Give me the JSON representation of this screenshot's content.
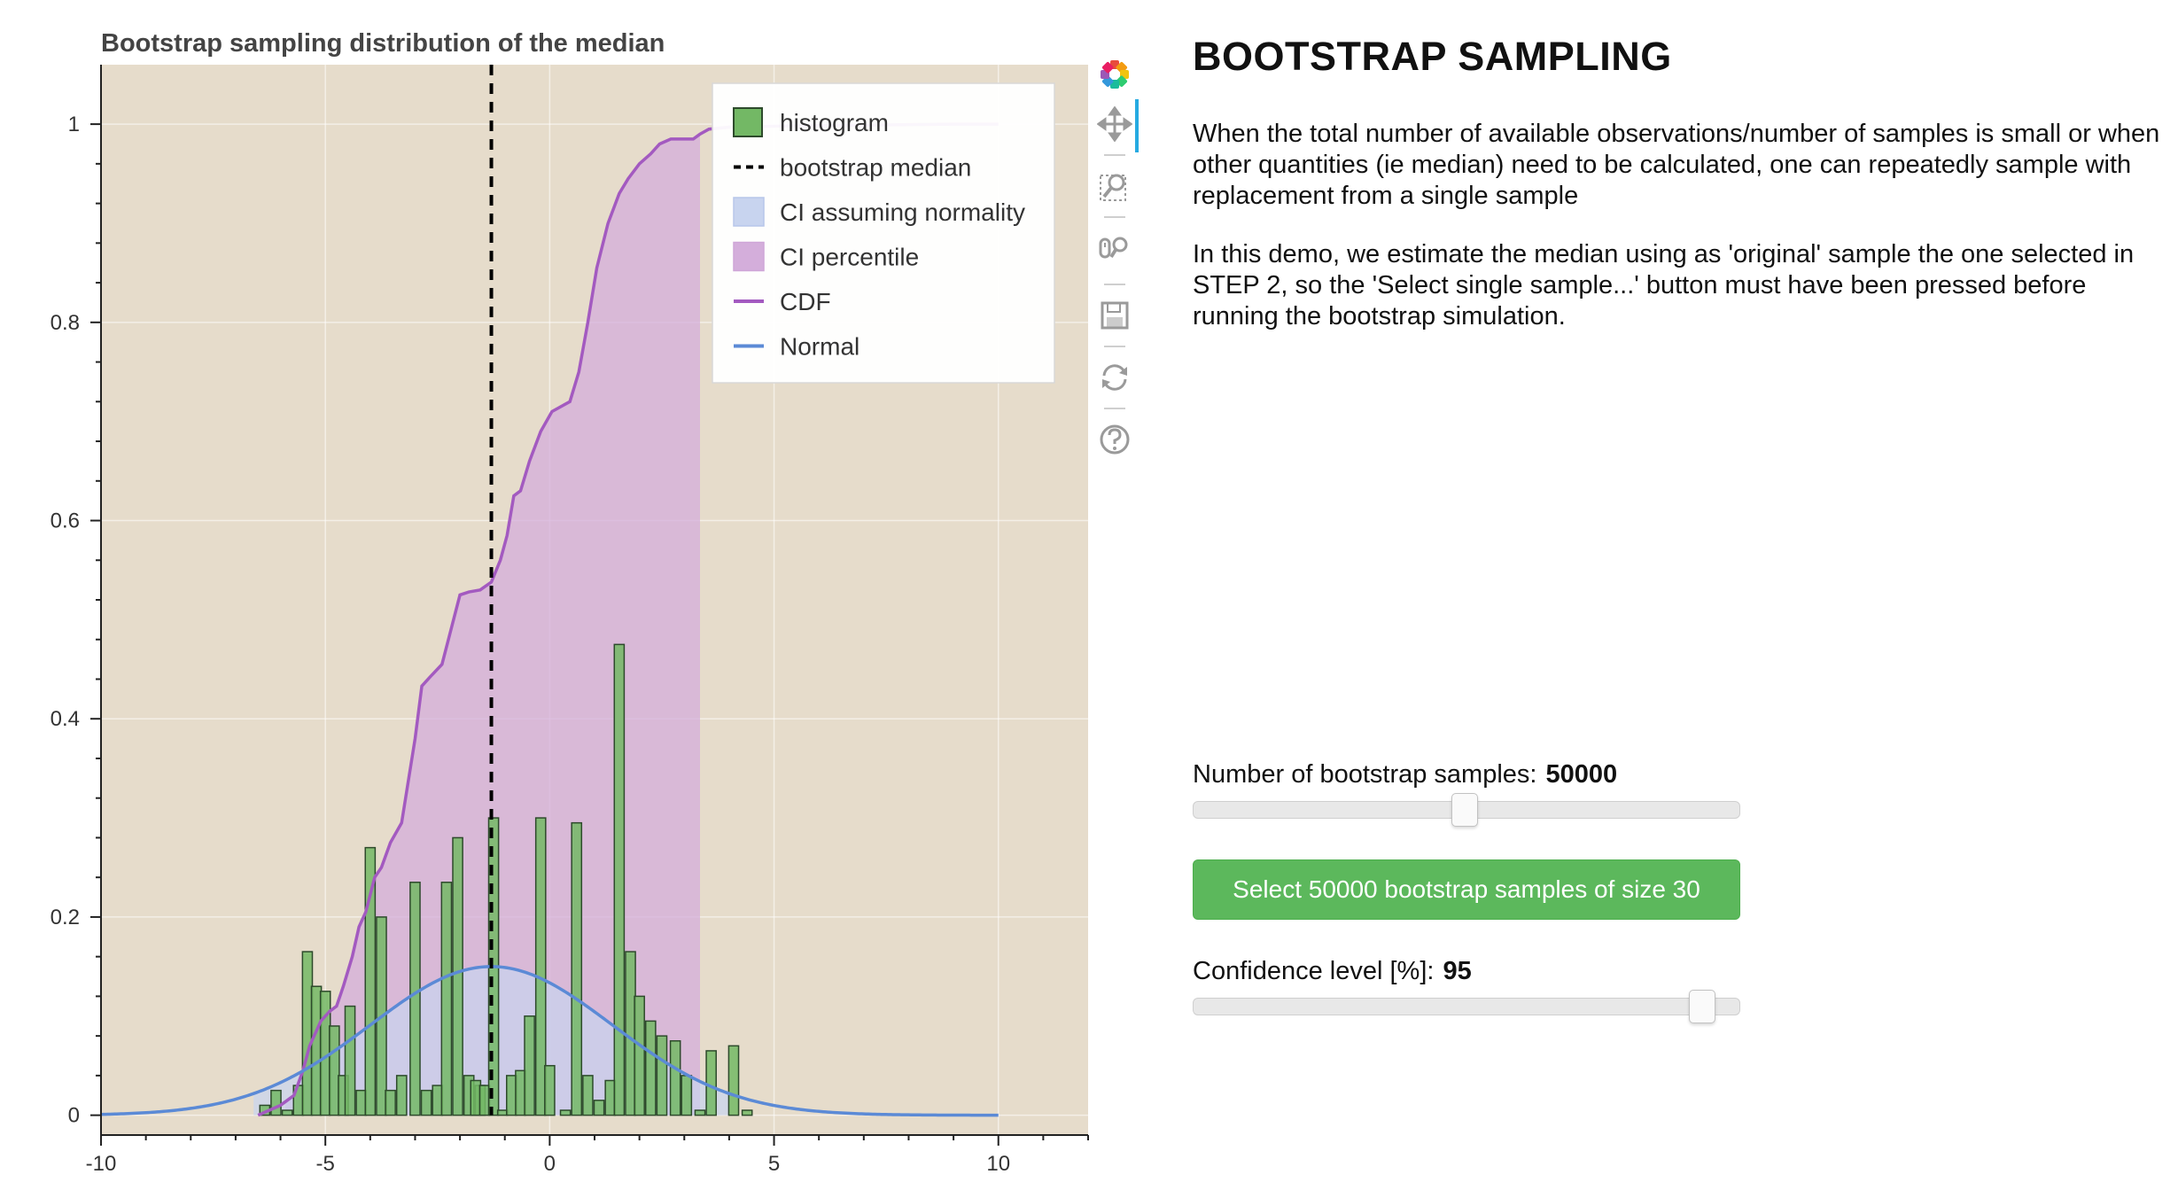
{
  "colors": {
    "plot_background": "#e6dccb",
    "histogram_fill": "#73b865",
    "histogram_edge": "#2d4a2b",
    "median_line": "#000000",
    "ci_normal_fill": "#c8d4ef",
    "ci_percentile_fill": "#d4aedb",
    "cdf_line": "#a35ac0",
    "normal_line": "#5b8ad6",
    "button_green": "#5cb85c"
  },
  "toolbar": {
    "tools": [
      {
        "name": "bokeh-logo-icon",
        "interactable": false
      },
      {
        "name": "pan-icon",
        "interactable": true,
        "active": true
      },
      {
        "name": "box-zoom-icon",
        "interactable": true
      },
      {
        "name": "wheel-zoom-icon",
        "interactable": true
      },
      {
        "name": "save-icon",
        "interactable": true
      },
      {
        "name": "reset-icon",
        "interactable": true
      },
      {
        "name": "help-icon",
        "interactable": true
      }
    ]
  },
  "panel": {
    "title": "BOOTSTRAP SAMPLING",
    "description_1": "When the total number of available observations/number of samples is small or when other quantities (ie median) need to be calculated, one can repeatedly sample with replacement from a single sample",
    "description_2": "In this demo, we estimate the median using as 'original' sample the one selected in STEP 2, so the 'Select single sample...' button must have been pressed before running the bootstrap simulation.",
    "samples_slider": {
      "label": "Number of bootstrap samples:",
      "value": "50000",
      "fraction": 0.495
    },
    "select_button_label": "Select 50000 bootstrap samples of size 30",
    "confidence_slider": {
      "label": "Confidence level [%]:",
      "value": "95",
      "fraction": 0.95
    }
  },
  "chart_data": {
    "type": "bar",
    "title": "Bootstrap sampling distribution of the median",
    "xlabel": "",
    "ylabel": "",
    "xlim": [
      -10,
      12
    ],
    "ylim": [
      -0.02,
      1.06
    ],
    "x_ticks": [
      -10,
      -5,
      0,
      5,
      10
    ],
    "x_tick_labels": [
      "-10",
      "-5",
      "0",
      "5",
      "10"
    ],
    "y_ticks": [
      0,
      0.2,
      0.4,
      0.6,
      0.8,
      1
    ],
    "y_tick_labels": [
      "0",
      "0.2",
      "0.4",
      "0.6",
      "0.8",
      "1"
    ],
    "grid": true,
    "legend_position": "top-right",
    "legend": [
      {
        "label": "histogram",
        "kind": "histogram"
      },
      {
        "label": "bootstrap median",
        "kind": "dashed"
      },
      {
        "label": "CI assuming normality",
        "kind": "ci_normal"
      },
      {
        "label": "CI percentile",
        "kind": "ci_percentile"
      },
      {
        "label": "CDF",
        "kind": "cdf"
      },
      {
        "label": "Normal",
        "kind": "normal"
      }
    ],
    "histogram": {
      "name": "histogram",
      "bin_width": 0.22,
      "bins": [
        [
          -6.35,
          0.01
        ],
        [
          -6.1,
          0.025
        ],
        [
          -5.85,
          0.005
        ],
        [
          -5.6,
          0.03
        ],
        [
          -5.4,
          0.165
        ],
        [
          -5.2,
          0.13
        ],
        [
          -5.0,
          0.125
        ],
        [
          -4.8,
          0.09
        ],
        [
          -4.6,
          0.04
        ],
        [
          -4.45,
          0.11
        ],
        [
          -4.2,
          0.025
        ],
        [
          -4.0,
          0.27
        ],
        [
          -3.75,
          0.2
        ],
        [
          -3.55,
          0.025
        ],
        [
          -3.3,
          0.04
        ],
        [
          -3.0,
          0.235
        ],
        [
          -2.75,
          0.025
        ],
        [
          -2.5,
          0.03
        ],
        [
          -2.3,
          0.235
        ],
        [
          -2.05,
          0.28
        ],
        [
          -1.8,
          0.04
        ],
        [
          -1.55,
          0.03
        ],
        [
          -1.65,
          0.035
        ],
        [
          -1.45,
          0.03
        ],
        [
          -1.25,
          0.3
        ],
        [
          -1.05,
          0.005
        ],
        [
          -0.85,
          0.04
        ],
        [
          -0.65,
          0.045
        ],
        [
          -0.45,
          0.1
        ],
        [
          -0.2,
          0.3
        ],
        [
          0.0,
          0.05
        ],
        [
          0.35,
          0.005
        ],
        [
          0.6,
          0.295
        ],
        [
          0.85,
          0.04
        ],
        [
          1.1,
          0.015
        ],
        [
          1.35,
          0.035
        ],
        [
          1.55,
          0.475
        ],
        [
          1.8,
          0.165
        ],
        [
          2.0,
          0.12
        ],
        [
          2.25,
          0.095
        ],
        [
          2.5,
          0.08
        ],
        [
          2.8,
          0.075
        ],
        [
          3.05,
          0.04
        ],
        [
          3.35,
          0.005
        ],
        [
          3.6,
          0.065
        ],
        [
          4.1,
          0.07
        ],
        [
          4.4,
          0.005
        ]
      ]
    },
    "cdf": {
      "name": "CDF",
      "x": [
        -6.5,
        -6.0,
        -5.7,
        -5.5,
        -5.35,
        -5.1,
        -4.9,
        -4.75,
        -4.6,
        -4.4,
        -4.25,
        -4.1,
        -3.9,
        -3.75,
        -3.55,
        -3.3,
        -3.0,
        -2.85,
        -2.65,
        -2.4,
        -2.2,
        -2.0,
        -1.8,
        -1.55,
        -1.3,
        -1.1,
        -0.95,
        -0.8,
        -0.65,
        -0.45,
        -0.2,
        0.05,
        0.25,
        0.45,
        0.65,
        0.85,
        1.05,
        1.3,
        1.55,
        1.75,
        2.0,
        2.25,
        2.45,
        2.7,
        2.95,
        3.2,
        3.35,
        3.55,
        4.0,
        5.0,
        7.0,
        9.0,
        10.0
      ],
      "y": [
        0.0,
        0.01,
        0.02,
        0.045,
        0.07,
        0.095,
        0.105,
        0.11,
        0.13,
        0.16,
        0.19,
        0.205,
        0.24,
        0.25,
        0.275,
        0.295,
        0.38,
        0.433,
        0.443,
        0.455,
        0.49,
        0.525,
        0.528,
        0.53,
        0.538,
        0.56,
        0.585,
        0.625,
        0.63,
        0.66,
        0.69,
        0.71,
        0.715,
        0.72,
        0.75,
        0.8,
        0.855,
        0.9,
        0.93,
        0.945,
        0.96,
        0.97,
        0.98,
        0.985,
        0.985,
        0.985,
        0.99,
        0.995,
        0.997,
        0.998,
        0.999,
        1.0,
        1.0
      ]
    },
    "normal": {
      "name": "Normal",
      "mean": -1.3,
      "sd": 2.7,
      "peak": 0.15,
      "x_range": [
        -10,
        10
      ]
    },
    "bootstrap_median": -1.3,
    "ci_normality": [
      -6.6,
      4.0
    ],
    "ci_percentile": [
      -5.9,
      3.35
    ]
  }
}
